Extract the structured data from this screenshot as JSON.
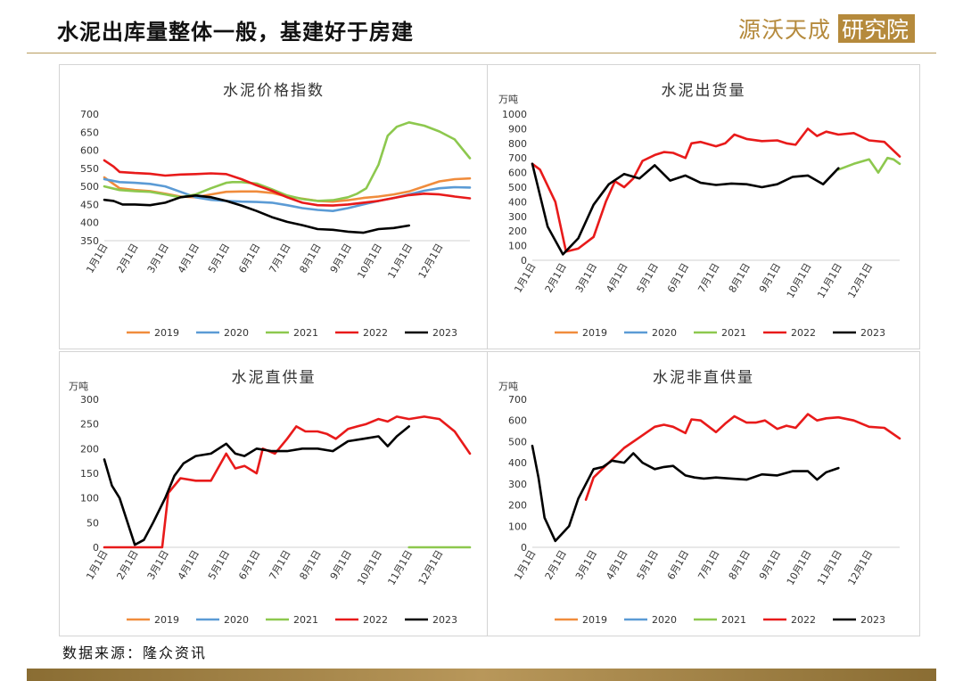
{
  "header": {
    "title": "水泥出库量整体一般，基建好于房建"
  },
  "logo": {
    "text": "源沃天成研究院"
  },
  "source": "数据来源：隆众资讯",
  "colors": {
    "2019": "#f08c3c",
    "2020": "#5b9bd5",
    "2021": "#8dc84e",
    "2022": "#e81a1a",
    "2023": "#000000"
  },
  "chart_data": [
    {
      "title": "水泥价格指数",
      "type": "line",
      "unit": "",
      "ylim": [
        350,
        700
      ],
      "yticks": [
        350,
        400,
        450,
        500,
        550,
        600,
        650,
        700
      ],
      "xticks": [
        "1月1日",
        "2月1日",
        "3月1日",
        "4月1日",
        "5月1日",
        "6月1日",
        "7月1日",
        "8月1日",
        "9月1日",
        "10月1日",
        "11月1日",
        "12月1日"
      ],
      "legend": "bottom",
      "series": [
        {
          "name": "2019",
          "x": [
            1,
            1.5,
            2,
            2.5,
            3,
            3.5,
            4,
            4.5,
            5,
            5.5,
            6,
            6.5,
            7,
            7.5,
            8,
            8.5,
            9,
            9.5,
            10,
            10.5,
            11,
            11.5,
            12,
            12.5,
            13
          ],
          "y": [
            525,
            495,
            490,
            487,
            480,
            472,
            470,
            478,
            485,
            486,
            486,
            482,
            472,
            466,
            460,
            458,
            462,
            468,
            472,
            478,
            486,
            500,
            514,
            520,
            522
          ]
        },
        {
          "name": "2020",
          "x": [
            1,
            1.5,
            2,
            2.5,
            3,
            3.5,
            4,
            4.5,
            5,
            5.5,
            6,
            6.5,
            7,
            7.5,
            8,
            8.5,
            9,
            9.5,
            10,
            10.5,
            11,
            11.5,
            12,
            12.5,
            13
          ],
          "y": [
            520,
            512,
            510,
            507,
            500,
            485,
            470,
            463,
            460,
            458,
            457,
            455,
            448,
            440,
            435,
            432,
            440,
            450,
            460,
            468,
            478,
            488,
            495,
            498,
            497
          ]
        },
        {
          "name": "2021",
          "x": [
            1,
            1.5,
            2,
            2.5,
            3,
            3.5,
            4,
            4.5,
            5,
            5.2,
            5.5,
            6,
            6.5,
            7,
            7.5,
            8,
            8.5,
            9,
            9.3,
            9.6,
            10,
            10.3,
            10.6,
            11,
            11.5,
            12,
            12.5,
            13
          ],
          "y": [
            500,
            490,
            487,
            485,
            478,
            470,
            478,
            495,
            510,
            512,
            512,
            508,
            492,
            475,
            465,
            460,
            462,
            470,
            480,
            495,
            560,
            640,
            665,
            677,
            668,
            652,
            630,
            578
          ]
        },
        {
          "name": "2022",
          "x": [
            1,
            1.3,
            1.5,
            2,
            2.5,
            3,
            3.5,
            4,
            4.5,
            5,
            5.5,
            6,
            6.5,
            7,
            7.5,
            8,
            8.5,
            9,
            9.5,
            10,
            10.5,
            11,
            11.5,
            12,
            12.5,
            13
          ],
          "y": [
            572,
            555,
            540,
            537,
            535,
            530,
            533,
            534,
            536,
            534,
            520,
            503,
            488,
            470,
            455,
            448,
            447,
            450,
            455,
            460,
            468,
            476,
            480,
            478,
            472,
            467
          ]
        },
        {
          "name": "2023",
          "x": [
            1,
            1.3,
            1.6,
            2,
            2.5,
            3,
            3.5,
            4,
            4.5,
            5,
            5.5,
            6,
            6.5,
            7,
            7.5,
            8,
            8.5,
            9,
            9.5,
            10,
            10.5,
            11
          ],
          "y": [
            463,
            460,
            450,
            450,
            448,
            455,
            470,
            475,
            470,
            460,
            447,
            432,
            415,
            402,
            393,
            382,
            380,
            375,
            372,
            382,
            385,
            392
          ]
        }
      ]
    },
    {
      "title": "水泥出货量",
      "type": "line",
      "unit": "万吨",
      "ylim": [
        0,
        1000
      ],
      "yticks": [
        0,
        100,
        200,
        300,
        400,
        500,
        600,
        700,
        800,
        900,
        1000
      ],
      "xticks": [
        "1月1日",
        "2月1日",
        "3月1日",
        "4月1日",
        "5月1日",
        "6月1日",
        "7月1日",
        "8月1日",
        "9月1日",
        "10月1日",
        "11月1日",
        "12月1日"
      ],
      "legend": "bottom",
      "series": [
        {
          "name": "2019",
          "x": [],
          "y": []
        },
        {
          "name": "2020",
          "x": [],
          "y": []
        },
        {
          "name": "2021",
          "x": [
            11,
            11.5,
            12,
            12.3,
            12.6,
            12.8,
            13
          ],
          "y": [
            620,
            660,
            690,
            600,
            700,
            690,
            660
          ]
        },
        {
          "name": "2022",
          "x": [
            1,
            1.25,
            1.75,
            2.1,
            2.5,
            3,
            3.4,
            3.7,
            4,
            4.3,
            4.6,
            5,
            5.3,
            5.6,
            6,
            6.2,
            6.5,
            7,
            7.3,
            7.6,
            8,
            8.5,
            9,
            9.3,
            9.6,
            10,
            10.3,
            10.6,
            11,
            11.5,
            12,
            12.5,
            13
          ],
          "y": [
            660,
            620,
            400,
            60,
            80,
            160,
            400,
            540,
            500,
            560,
            680,
            720,
            740,
            735,
            700,
            800,
            810,
            780,
            800,
            860,
            830,
            815,
            820,
            800,
            790,
            900,
            850,
            880,
            860,
            870,
            820,
            810,
            710
          ]
        },
        {
          "name": "2023",
          "x": [
            1,
            1.5,
            2,
            2.5,
            3,
            3.5,
            4,
            4.5,
            5,
            5.5,
            6,
            6.5,
            7,
            7.5,
            8,
            8.5,
            9,
            9.5,
            10,
            10.5,
            11
          ],
          "y": [
            660,
            230,
            40,
            150,
            380,
            520,
            590,
            560,
            650,
            545,
            580,
            530,
            515,
            525,
            520,
            500,
            520,
            570,
            580,
            520,
            630
          ]
        }
      ]
    },
    {
      "title": "水泥直供量",
      "type": "line",
      "unit": "万吨",
      "ylim": [
        0,
        300
      ],
      "yticks": [
        0,
        50,
        100,
        150,
        200,
        250,
        300
      ],
      "xticks": [
        "1月1日",
        "2月1日",
        "3月1日",
        "4月1日",
        "5月1日",
        "6月1日",
        "7月1日",
        "8月1日",
        "9月1日",
        "10月1日",
        "11月1日",
        "12月1日"
      ],
      "legend": "bottom",
      "series": [
        {
          "name": "2019",
          "x": [],
          "y": []
        },
        {
          "name": "2020",
          "x": [],
          "y": []
        },
        {
          "name": "2021",
          "x": [
            11,
            13
          ],
          "y": [
            0,
            0
          ]
        },
        {
          "name": "2022",
          "x": [
            1,
            2.5,
            2.9,
            3.1,
            3.5,
            4,
            4.5,
            5,
            5.3,
            5.6,
            6,
            6.2,
            6.6,
            7,
            7.3,
            7.6,
            8,
            8.3,
            8.6,
            9,
            9.3,
            9.6,
            10,
            10.3,
            10.6,
            11,
            11.5,
            12,
            12.5,
            13
          ],
          "y": [
            0,
            0,
            0,
            110,
            140,
            135,
            135,
            190,
            160,
            165,
            150,
            200,
            190,
            220,
            245,
            235,
            235,
            230,
            220,
            240,
            245,
            250,
            260,
            255,
            265,
            260,
            265,
            260,
            235,
            190
          ]
        },
        {
          "name": "2023",
          "x": [
            1,
            1.25,
            1.5,
            2,
            2.3,
            2.6,
            3,
            3.3,
            3.6,
            4,
            4.5,
            5,
            5.3,
            5.6,
            6,
            6.5,
            7,
            7.5,
            8,
            8.5,
            9,
            9.5,
            10,
            10.3,
            10.6,
            11
          ],
          "y": [
            178,
            125,
            100,
            5,
            15,
            50,
            100,
            145,
            170,
            185,
            190,
            210,
            190,
            185,
            200,
            195,
            195,
            200,
            200,
            195,
            215,
            220,
            225,
            205,
            225,
            245
          ]
        }
      ]
    },
    {
      "title": "水泥非直供量",
      "type": "line",
      "unit": "万吨",
      "ylim": [
        0,
        700
      ],
      "yticks": [
        0,
        100,
        200,
        300,
        400,
        500,
        600,
        700
      ],
      "xticks": [
        "1月1日",
        "2月1日",
        "3月1日",
        "4月1日",
        "5月1日",
        "6月1日",
        "7月1日",
        "8月1日",
        "9月1日",
        "10月1日",
        "11月1日",
        "12月1日"
      ],
      "legend": "bottom",
      "series": [
        {
          "name": "2019",
          "x": [],
          "y": []
        },
        {
          "name": "2020",
          "x": [],
          "y": []
        },
        {
          "name": "2021",
          "x": [],
          "y": []
        },
        {
          "name": "2022",
          "x": [
            2.75,
            3,
            3.5,
            4,
            4.5,
            5,
            5.3,
            5.6,
            6,
            6.2,
            6.5,
            7,
            7.3,
            7.6,
            8,
            8.3,
            8.6,
            9,
            9.3,
            9.6,
            10,
            10.3,
            10.6,
            11,
            11.5,
            12,
            12.5,
            13
          ],
          "y": [
            225,
            330,
            400,
            470,
            520,
            570,
            580,
            570,
            540,
            605,
            600,
            545,
            585,
            620,
            590,
            590,
            600,
            560,
            575,
            565,
            630,
            600,
            610,
            615,
            600,
            570,
            565,
            515
          ]
        },
        {
          "name": "2023",
          "x": [
            1,
            1.2,
            1.4,
            1.75,
            2.2,
            2.5,
            3,
            3.3,
            3.6,
            4,
            4.3,
            4.6,
            5,
            5.3,
            5.6,
            6,
            6.3,
            6.6,
            7,
            7.5,
            8,
            8.5,
            9,
            9.5,
            10,
            10.3,
            10.6,
            11
          ],
          "y": [
            480,
            330,
            140,
            30,
            100,
            230,
            370,
            380,
            410,
            400,
            445,
            400,
            370,
            380,
            385,
            340,
            330,
            325,
            330,
            325,
            320,
            345,
            340,
            360,
            360,
            320,
            355,
            375
          ]
        }
      ]
    }
  ]
}
